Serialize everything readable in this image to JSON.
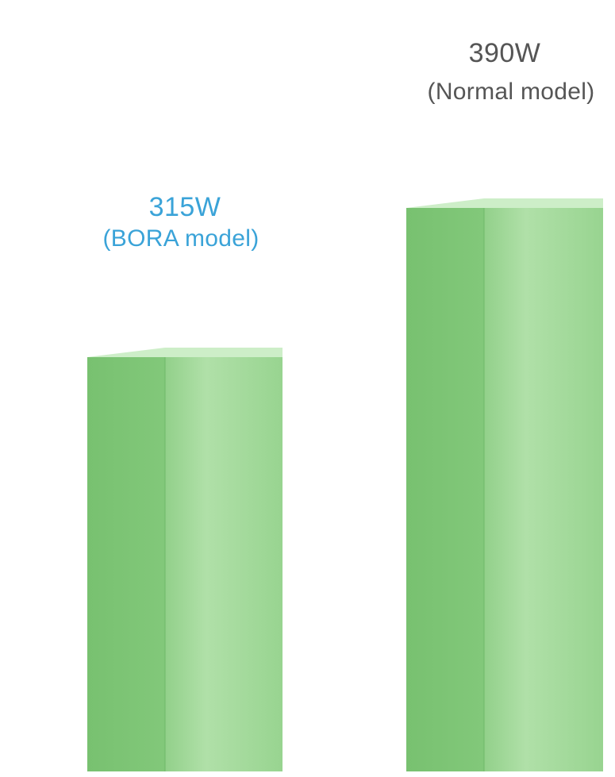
{
  "chart_data": {
    "type": "bar",
    "title": "",
    "xlabel": "",
    "ylabel": "",
    "categories": [
      "(BORA model)",
      "(Normal model)"
    ],
    "values": [
      315,
      390
    ],
    "value_labels": [
      "315W",
      "390W"
    ],
    "unit": "W",
    "grid": false,
    "colors": {
      "bar_front": "#7cc475",
      "bar_side": "#a4d99d",
      "bar_top": "#cdeec8",
      "label_bora": "#3aa3d8",
      "label_normal": "#555555"
    }
  }
}
